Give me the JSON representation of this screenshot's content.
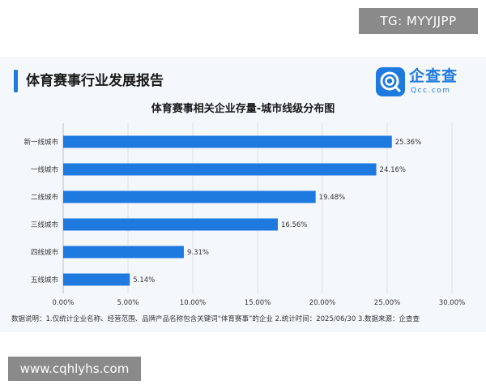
{
  "watermarks": {
    "top": "TG: MYYJJPP",
    "bottom": "www.cqhlyhs.com"
  },
  "header": {
    "report_title": "体育赛事行业发展报告"
  },
  "logo": {
    "name_cn": "企查查",
    "name_en": "Qcc.com",
    "icon": "qcc-logo-icon"
  },
  "footnote": "数据说明：1.仅统计企业名称、经营范围、品牌产品名称包含关键词“体育赛事”的企业  2.统计时间：2025/06/30  3.数据来源：企查查",
  "colors": {
    "bar": "#1f7ae0",
    "accent": "#1f7ae0",
    "grid": "#dde3ea"
  },
  "chart_data": {
    "type": "bar",
    "orientation": "horizontal",
    "title": "体育赛事相关企业存量-城市线级分布图",
    "categories": [
      "新一线城市",
      "一线城市",
      "二线城市",
      "三线城市",
      "四线城市",
      "五线城市"
    ],
    "values": [
      25.36,
      24.16,
      19.48,
      16.56,
      9.31,
      5.14
    ],
    "value_labels": [
      "25.36%",
      "24.16%",
      "19.48%",
      "16.56%",
      "9.31%",
      "5.14%"
    ],
    "xlim": [
      0,
      30
    ],
    "x_ticks": [
      0,
      5,
      10,
      15,
      20,
      25,
      30
    ],
    "x_tick_labels": [
      "0.00%",
      "5.00%",
      "10.00%",
      "15.00%",
      "20.00%",
      "25.00%",
      "30.00%"
    ],
    "grid": true,
    "legend": false
  }
}
